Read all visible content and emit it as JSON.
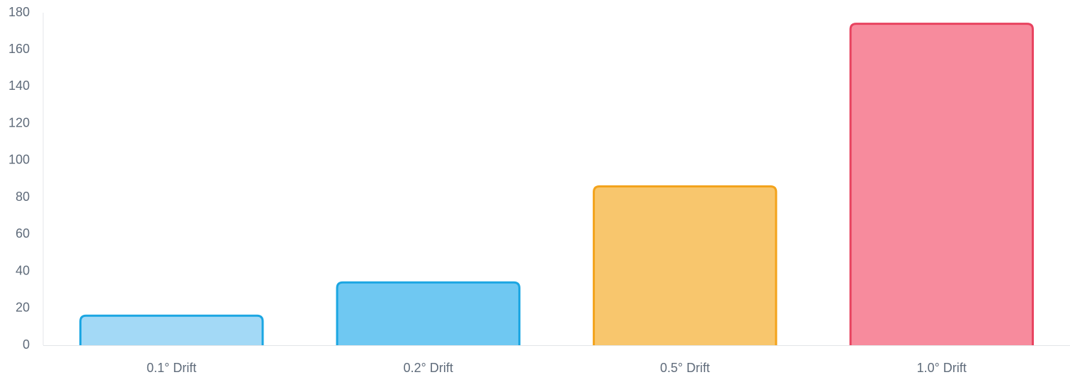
{
  "chart_data": {
    "type": "bar",
    "categories": [
      "0.1° Drift",
      "0.2° Drift",
      "0.5° Drift",
      "1.0° Drift"
    ],
    "values": [
      16,
      34,
      86,
      174
    ],
    "colors": [
      "#a3d9f6",
      "#6fc8f2",
      "#f8c66d",
      "#f78b9d"
    ],
    "border_colors": [
      "#1ba6e2",
      "#1ba6e2",
      "#f3a31c",
      "#e8425f"
    ],
    "ylim": [
      0,
      180
    ],
    "yticks": [
      0,
      20,
      40,
      60,
      80,
      100,
      120,
      140,
      160,
      180
    ],
    "grid": false
  }
}
